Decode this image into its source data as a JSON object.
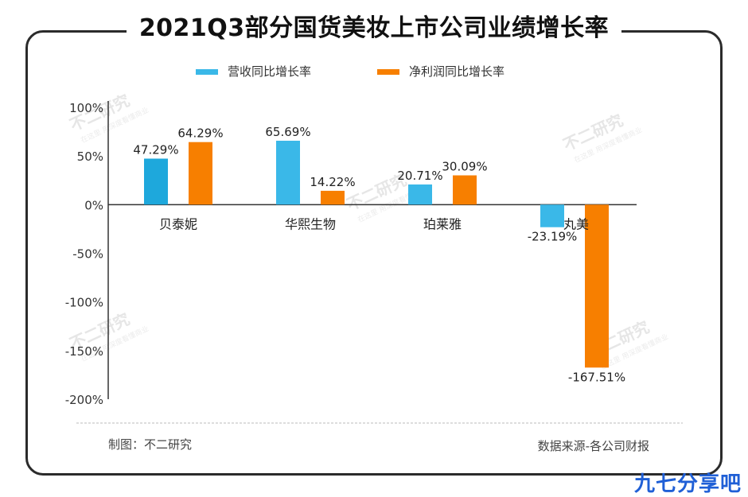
{
  "title": "2021Q3部分国货美妆上市公司业绩增长率",
  "chart_data": {
    "type": "bar",
    "categories": [
      "贝泰妮",
      "华熙生物",
      "珀莱雅",
      "丸美"
    ],
    "series": [
      {
        "name": "营收同比增长率",
        "values": [
          47.29,
          65.69,
          20.71,
          -23.19
        ],
        "labels": [
          "47.29%",
          "65.69%",
          "20.71%",
          "-23.19%"
        ]
      },
      {
        "name": "净利润同比增长率",
        "values": [
          64.29,
          14.22,
          30.09,
          -167.51
        ],
        "labels": [
          "64.29%",
          "14.22%",
          "30.09%",
          "-167.51%"
        ]
      }
    ],
    "yticks": [
      "100%",
      "50%",
      "0%",
      "-50%",
      "-100%",
      "-150%",
      "-200%"
    ],
    "ylim": [
      -200,
      100
    ],
    "legend_position": "top",
    "colors": {
      "revenue": "#3ab8e8",
      "revenue_alt": "#1ea8dc",
      "profit": "#f77f00"
    }
  },
  "footer": {
    "made_by": "制图：不二研究",
    "source": "数据来源-各公司财报"
  },
  "watermark": {
    "text": "不二研究",
    "sub": "在这里 用深度看懂商业"
  },
  "brand": "九七分享吧"
}
